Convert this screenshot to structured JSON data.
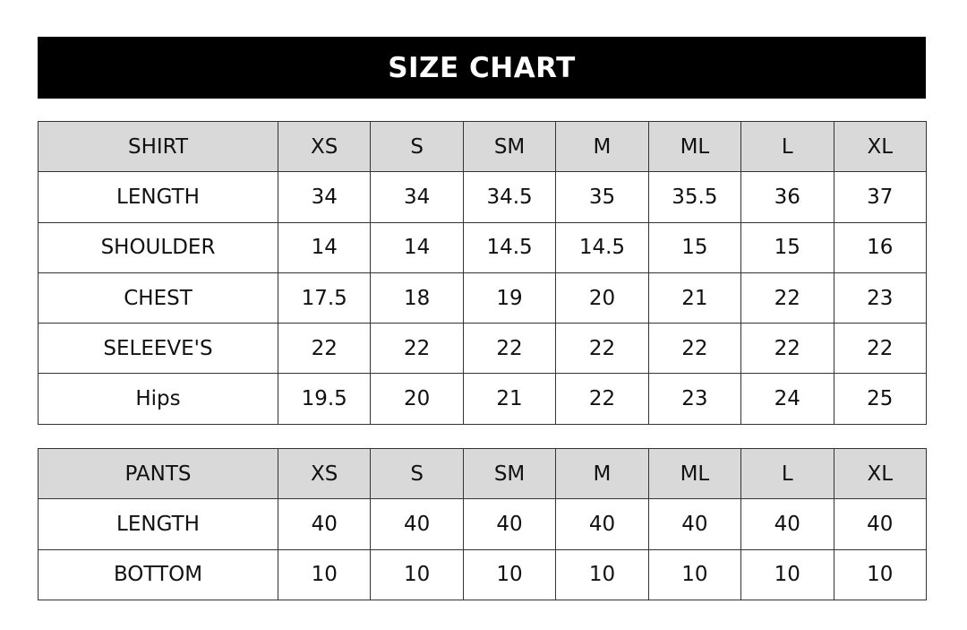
{
  "title": "SIZE CHART",
  "shirt": {
    "header": [
      "SHIRT",
      "XS",
      "S",
      "SM",
      "M",
      "ML",
      "L",
      "XL"
    ],
    "rows": [
      [
        "LENGTH",
        "34",
        "34",
        "34.5",
        "35",
        "35.5",
        "36",
        "37"
      ],
      [
        "SHOULDER",
        "14",
        "14",
        "14.5",
        "14.5",
        "15",
        "15",
        "16"
      ],
      [
        "CHEST",
        "17.5",
        "18",
        "19",
        "20",
        "21",
        "22",
        "23"
      ],
      [
        "SELEEVE'S",
        "22",
        "22",
        "22",
        "22",
        "22",
        "22",
        "22"
      ],
      [
        "Hips",
        "19.5",
        "20",
        "21",
        "22",
        "23",
        "24",
        "25"
      ]
    ]
  },
  "pants": {
    "header": [
      "PANTS",
      "XS",
      "S",
      "SM",
      "M",
      "ML",
      "L",
      "XL"
    ],
    "rows": [
      [
        "LENGTH",
        "40",
        "40",
        "40",
        "40",
        "40",
        "40",
        "40"
      ],
      [
        "BOTTOM",
        "10",
        "10",
        "10",
        "10",
        "10",
        "10",
        "10"
      ]
    ]
  }
}
